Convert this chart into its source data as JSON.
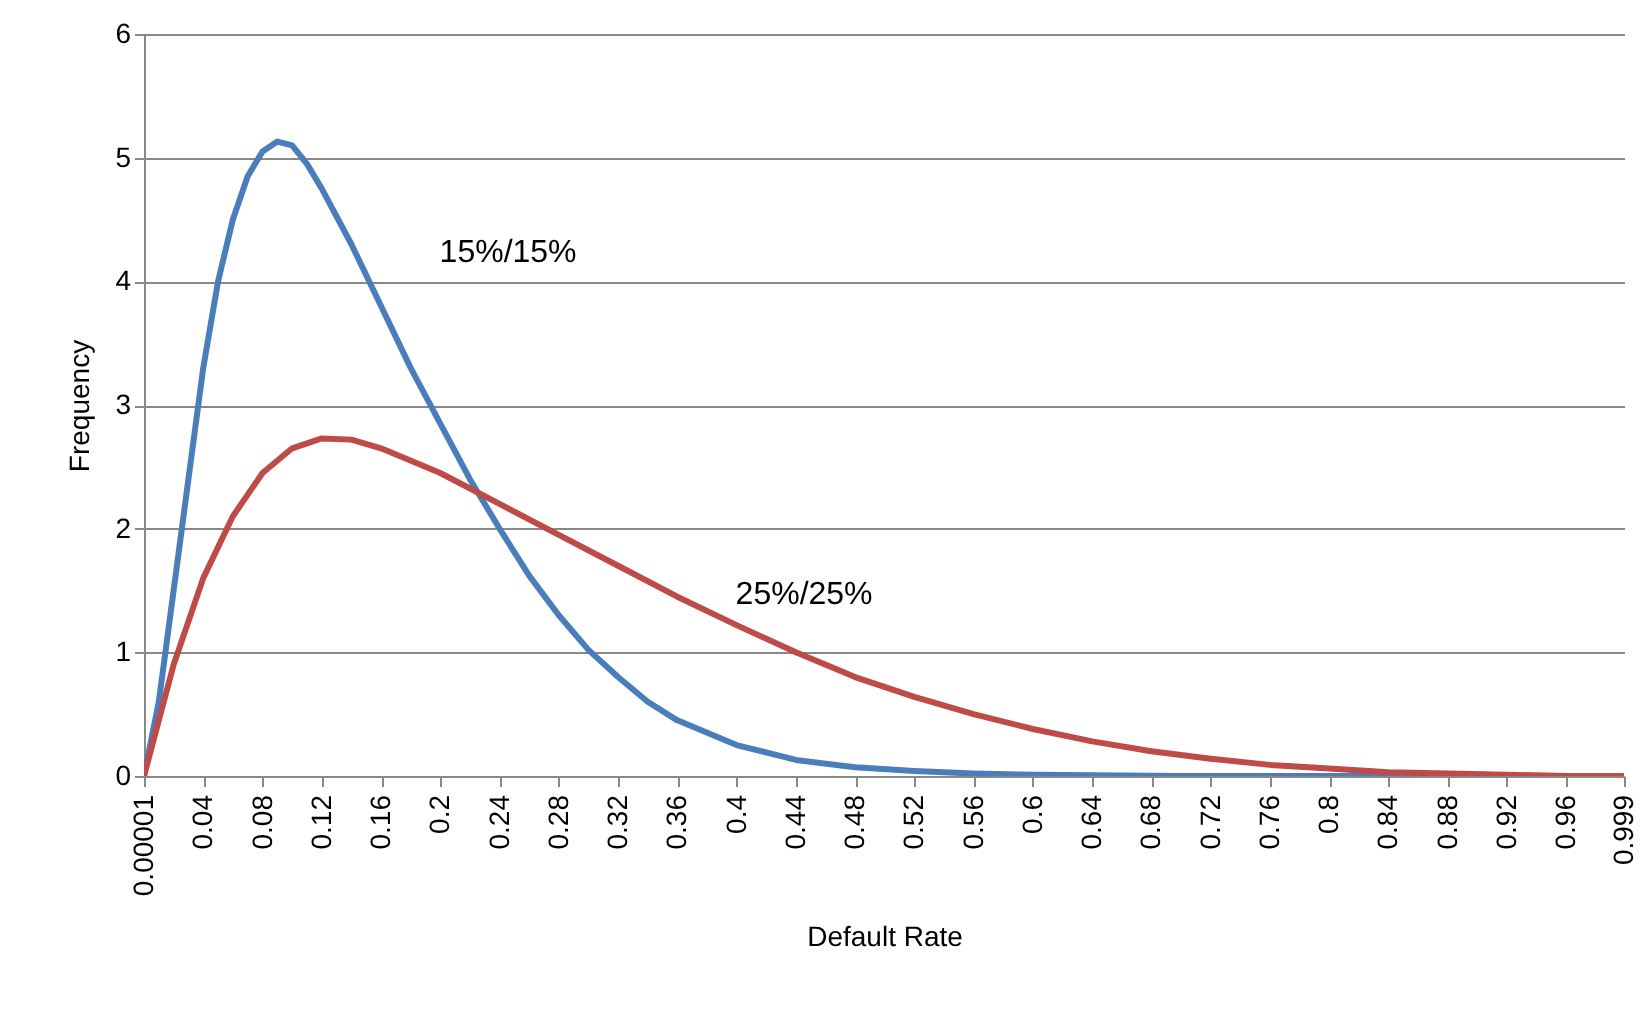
{
  "chart_data": {
    "type": "line",
    "xlabel": "Default Rate",
    "ylabel": "Frequency",
    "xlim": [
      1e-05,
      0.999
    ],
    "xticks": [
      {
        "value": 1e-05,
        "label": "0.00001"
      },
      0.04,
      0.08,
      0.12,
      0.16,
      0.2,
      0.24,
      0.28,
      0.32,
      0.36,
      0.4,
      0.44,
      0.48,
      0.52,
      0.56,
      0.6,
      0.64,
      0.68,
      0.72,
      0.76,
      0.8,
      0.84,
      0.88,
      0.92,
      0.96,
      0.999
    ],
    "ylim": [
      0,
      6
    ],
    "yticks": [
      0,
      1,
      2,
      3,
      4,
      5,
      6
    ],
    "grid": "y",
    "marker": "none",
    "line_style": "solid",
    "annotations": [
      "15%/15%",
      "25%/25%"
    ],
    "series": [
      {
        "color": "#4a7ebb",
        "x": [
          1e-05,
          0.01,
          0.02,
          0.03,
          0.04,
          0.05,
          0.06,
          0.07,
          0.08,
          0.09,
          0.1,
          0.11,
          0.12,
          0.14,
          0.16,
          0.18,
          0.2,
          0.22,
          0.24,
          0.26,
          0.28,
          0.3,
          0.32,
          0.34,
          0.36,
          0.4,
          0.44,
          0.48,
          0.52,
          0.56,
          0.6,
          0.7,
          0.999
        ],
        "values": [
          0,
          0.6,
          1.5,
          2.4,
          3.3,
          4.0,
          4.5,
          4.85,
          5.05,
          5.13,
          5.1,
          4.95,
          4.75,
          4.3,
          3.8,
          3.3,
          2.85,
          2.4,
          2.0,
          1.62,
          1.3,
          1.02,
          0.8,
          0.6,
          0.45,
          0.25,
          0.13,
          0.07,
          0.04,
          0.02,
          0.01,
          0,
          0
        ]
      },
      {
        "color": "#be4b48",
        "x": [
          1e-05,
          0.02,
          0.04,
          0.06,
          0.08,
          0.1,
          0.12,
          0.14,
          0.16,
          0.2,
          0.24,
          0.28,
          0.32,
          0.36,
          0.4,
          0.44,
          0.48,
          0.52,
          0.56,
          0.6,
          0.64,
          0.68,
          0.72,
          0.76,
          0.8,
          0.84,
          0.88,
          0.92,
          0.96,
          0.999
        ],
        "values": [
          0,
          0.9,
          1.6,
          2.1,
          2.45,
          2.65,
          2.73,
          2.72,
          2.65,
          2.45,
          2.2,
          1.95,
          1.7,
          1.45,
          1.22,
          1.0,
          0.8,
          0.64,
          0.5,
          0.38,
          0.28,
          0.2,
          0.14,
          0.09,
          0.06,
          0.03,
          0.02,
          0.01,
          0,
          0
        ]
      }
    ]
  }
}
